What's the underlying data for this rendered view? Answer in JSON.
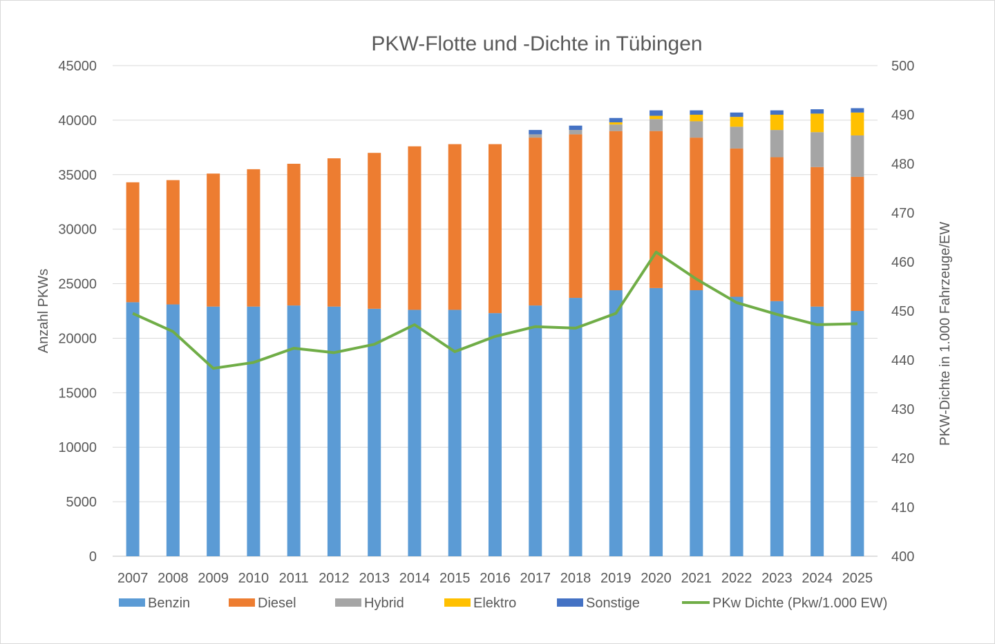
{
  "chart_data": {
    "type": "bar",
    "stacked": true,
    "title": "PKW-Flotte und -Dichte in Tübingen",
    "xlabel": "",
    "ylabel": "Anzahl PKWs",
    "y2label": "PKW-Dichte in 1.000 Fahrzeuge/EW",
    "ylim": [
      0,
      45000
    ],
    "y2lim": [
      400,
      500
    ],
    "yticks": [
      "0",
      "5000",
      "10000",
      "15000",
      "20000",
      "25000",
      "30000",
      "35000",
      "40000",
      "45000"
    ],
    "y2ticks": [
      "400",
      "410",
      "420",
      "430",
      "440",
      "450",
      "460",
      "470",
      "480",
      "490",
      "500"
    ],
    "grid": true,
    "legend_position": "bottom",
    "categories": [
      "2007",
      "2008",
      "2009",
      "2010",
      "2011",
      "2012",
      "2013",
      "2014",
      "2015",
      "2016",
      "2017",
      "2018",
      "2019",
      "2020",
      "2021",
      "2022",
      "2023",
      "2024",
      "2025"
    ],
    "series": [
      {
        "name": "Benzin",
        "color": "#5b9bd5",
        "type": "bar",
        "values": [
          23300,
          23100,
          22900,
          22900,
          23000,
          22900,
          22700,
          22600,
          22600,
          22300,
          23000,
          23700,
          24400,
          24600,
          24400,
          23800,
          23400,
          22900,
          22500
        ]
      },
      {
        "name": "Diesel",
        "color": "#ed7d31",
        "type": "bar",
        "values": [
          11000,
          11400,
          12200,
          12600,
          13000,
          13600,
          14300,
          15000,
          15200,
          15500,
          15400,
          15000,
          14600,
          14400,
          14000,
          13600,
          13200,
          12800,
          12300
        ]
      },
      {
        "name": "Hybrid",
        "color": "#a5a5a5",
        "type": "bar",
        "values": [
          0,
          0,
          0,
          0,
          0,
          0,
          0,
          0,
          0,
          0,
          300,
          400,
          600,
          1100,
          1500,
          2000,
          2500,
          3200,
          3800
        ]
      },
      {
        "name": "Elektro",
        "color": "#ffc000",
        "type": "bar",
        "values": [
          0,
          0,
          0,
          0,
          0,
          0,
          0,
          0,
          0,
          0,
          0,
          0,
          200,
          300,
          600,
          900,
          1400,
          1700,
          2100
        ]
      },
      {
        "name": "Sonstige",
        "color": "#4472c4",
        "type": "bar",
        "values": [
          0,
          0,
          0,
          0,
          0,
          0,
          0,
          0,
          0,
          0,
          400,
          400,
          400,
          500,
          400,
          400,
          400,
          400,
          400
        ]
      },
      {
        "name": "PKw Dichte (Pkw/1.000 EW)",
        "color": "#70ad47",
        "type": "line",
        "axis": "right",
        "values": [
          449.5,
          445.8,
          438.3,
          439.5,
          442.4,
          441.5,
          443.2,
          447.2,
          441.7,
          444.8,
          446.8,
          446.5,
          449.5,
          462,
          456.5,
          451.7,
          449.3,
          447.2,
          447.4
        ]
      }
    ]
  }
}
